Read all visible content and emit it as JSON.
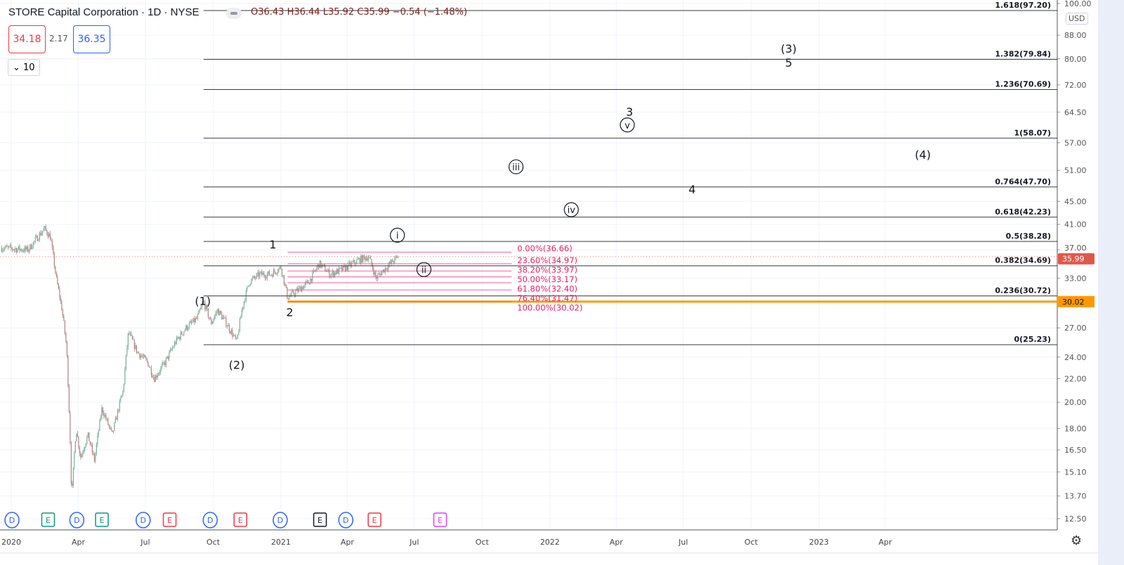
{
  "header": {
    "title": "STORE Capital Corporation · 1D · NYSE",
    "ohlc": "O36.43 H36.44 L35.92 C35.99 −0.54 (−1.48%)",
    "bid": "34.18",
    "spread": "2.17",
    "ask": "36.35",
    "lots": "10",
    "currency": "USD"
  },
  "colors": {
    "up": "#7fae9b",
    "down": "#b08686",
    "fib_ext": "#3a3a3a",
    "fib_retr": "#f0609a",
    "support": "#ff9800",
    "last_price": "#e0584a"
  },
  "chart_data": {
    "type": "candlestick",
    "symbol": "STORE Capital Corporation",
    "interval": "1D",
    "y_scale": "log",
    "ylim": [
      12.5,
      100
    ],
    "y_ticks": [
      "100.00",
      "88.00",
      "80.00",
      "72.00",
      "64.50",
      "57.00",
      "51.00",
      "45.00",
      "41.00",
      "37.00",
      "33.00",
      "27.00",
      "24.00",
      "22.00",
      "20.00",
      "18.00",
      "16.50",
      "15.10",
      "13.70",
      "12.50"
    ],
    "x_ticks": [
      {
        "date": "2020-01-01",
        "label": "2020"
      },
      {
        "date": "2020-04-01",
        "label": "Apr"
      },
      {
        "date": "2020-07-01",
        "label": "Jul"
      },
      {
        "date": "2020-10-01",
        "label": "Oct"
      },
      {
        "date": "2021-01-01",
        "label": "2021"
      },
      {
        "date": "2021-04-01",
        "label": "Apr"
      },
      {
        "date": "2021-07-01",
        "label": "Jul"
      },
      {
        "date": "2021-10-01",
        "label": "Oct"
      },
      {
        "date": "2022-01-01",
        "label": "2022"
      },
      {
        "date": "2022-04-01",
        "label": "Apr"
      },
      {
        "date": "2022-07-01",
        "label": "Jul"
      },
      {
        "date": "2022-10-01",
        "label": "Oct"
      },
      {
        "date": "2023-01-01",
        "label": "2023"
      },
      {
        "date": "2023-04-01",
        "label": "Apr"
      }
    ],
    "price_path": [
      [
        "2019-12-19",
        37.3
      ],
      [
        "2020-01-24",
        37.0
      ],
      [
        "2020-02-15",
        40.3
      ],
      [
        "2020-02-23",
        39.0
      ],
      [
        "2020-03-02",
        33.0
      ],
      [
        "2020-03-10",
        29.0
      ],
      [
        "2020-03-16",
        25.0
      ],
      [
        "2020-03-21",
        17.0
      ],
      [
        "2020-03-23",
        13.5
      ],
      [
        "2020-03-29",
        18.0
      ],
      [
        "2020-04-04",
        16.0
      ],
      [
        "2020-04-14",
        17.5
      ],
      [
        "2020-04-23",
        15.8
      ],
      [
        "2020-05-03",
        19.5
      ],
      [
        "2020-05-17",
        17.5
      ],
      [
        "2020-06-01",
        21.0
      ],
      [
        "2020-06-08",
        26.5
      ],
      [
        "2020-06-20",
        24.5
      ],
      [
        "2020-07-04",
        23.5
      ],
      [
        "2020-07-13",
        22.0
      ],
      [
        "2020-07-28",
        23.5
      ],
      [
        "2020-08-11",
        25.5
      ],
      [
        "2020-08-25",
        27.0
      ],
      [
        "2020-09-09",
        28.0
      ],
      [
        "2020-09-18",
        30.0
      ],
      [
        "2020-09-28",
        27.5
      ],
      [
        "2020-10-07",
        29.0
      ],
      [
        "2020-10-19",
        27.5
      ],
      [
        "2020-11-02",
        25.5
      ],
      [
        "2020-11-10",
        29.5
      ],
      [
        "2020-11-19",
        32.5
      ],
      [
        "2020-12-03",
        33.5
      ],
      [
        "2020-12-18",
        33.5
      ],
      [
        "2021-01-01",
        34.5
      ],
      [
        "2021-01-10",
        30.5
      ],
      [
        "2021-01-25",
        31.5
      ],
      [
        "2021-02-08",
        32.5
      ],
      [
        "2021-02-22",
        35.0
      ],
      [
        "2021-03-09",
        33.5
      ],
      [
        "2021-03-28",
        34.3
      ],
      [
        "2021-04-16",
        35.5
      ],
      [
        "2021-04-30",
        36.0
      ],
      [
        "2021-05-10",
        33.0
      ],
      [
        "2021-05-24",
        34.5
      ],
      [
        "2021-06-09",
        35.99
      ]
    ],
    "last_price": "35.99",
    "fib_extension": {
      "from_date": "2020-09-18",
      "levels": [
        {
          "ratio": "1.618",
          "price": 97.2,
          "label": "1.618(97.20)"
        },
        {
          "ratio": "1.382",
          "price": 79.84,
          "label": "1.382(79.84)"
        },
        {
          "ratio": "1.236",
          "price": 70.69,
          "label": "1.236(70.69)"
        },
        {
          "ratio": "1",
          "price": 58.07,
          "label": "1(58.07)"
        },
        {
          "ratio": "0.764",
          "price": 47.7,
          "label": "0.764(47.70)"
        },
        {
          "ratio": "0.618",
          "price": 42.23,
          "label": "0.618(42.23)"
        },
        {
          "ratio": "0.5",
          "price": 38.28,
          "label": "0.5(38.28)"
        },
        {
          "ratio": "0.382",
          "price": 34.69,
          "label": "0.382(34.69)"
        },
        {
          "ratio": "0.236",
          "price": 30.72,
          "label": "0.236(30.72)"
        },
        {
          "ratio": "0",
          "price": 25.23,
          "label": "0(25.23)"
        }
      ]
    },
    "fib_retracement": {
      "from_date": "2021-01-10",
      "to_date": "2021-11-10",
      "levels": [
        {
          "price": 36.66,
          "label": "0.00%(36.66)"
        },
        {
          "price": 34.97,
          "label": "23.60%(34.97)"
        },
        {
          "price": 33.97,
          "label": "38.20%(33.97)"
        },
        {
          "price": 33.17,
          "label": "50.00%(33.17)"
        },
        {
          "price": 32.4,
          "label": "61.80%(32.40)"
        },
        {
          "price": 31.47,
          "label": "76.40%(31.47)"
        },
        {
          "price": 30.02,
          "label": "100.00%(30.02)"
        }
      ]
    },
    "support_line": {
      "price": 30.02,
      "label": "30.02",
      "from_date": "2021-01-10"
    },
    "wave_labels": [
      {
        "text": "(1)",
        "date": "2020-09-17",
        "price": 29.6,
        "circled": false
      },
      {
        "text": "(2)",
        "date": "2020-11-02",
        "price": 22.9,
        "circled": false
      },
      {
        "text": "1",
        "date": "2020-12-21",
        "price": 37.2,
        "circled": false
      },
      {
        "text": "2",
        "date": "2021-01-13",
        "price": 28.3,
        "circled": false
      },
      {
        "text": "i",
        "date": "2021-06-08",
        "price": 38.7,
        "circled": true
      },
      {
        "text": "ii",
        "date": "2021-07-14",
        "price": 33.7,
        "circled": true
      },
      {
        "text": "iii",
        "date": "2021-11-16",
        "price": 51.0,
        "circled": true
      },
      {
        "text": "iv",
        "date": "2022-01-30",
        "price": 42.9,
        "circled": true
      },
      {
        "text": "v",
        "date": "2022-04-16",
        "price": 60.4,
        "circled": true
      },
      {
        "text": "3",
        "date": "2022-04-19",
        "price": 63.6,
        "circled": false
      },
      {
        "text": "4",
        "date": "2022-07-13",
        "price": 46.5,
        "circled": false
      },
      {
        "text": "(3)",
        "date": "2022-11-21",
        "price": 82.0,
        "circled": false
      },
      {
        "text": "5",
        "date": "2022-11-21",
        "price": 77.5,
        "circled": false
      },
      {
        "text": "(4)",
        "date": "2023-05-22",
        "price": 53.5,
        "circled": false
      }
    ],
    "events": [
      {
        "type": "D",
        "date": "2020-01-02",
        "color": "#2962ff"
      },
      {
        "type": "E",
        "date": "2020-02-20",
        "color": "#089981"
      },
      {
        "type": "D",
        "date": "2020-03-30",
        "color": "#2962ff"
      },
      {
        "type": "E",
        "date": "2020-05-03",
        "color": "#089981"
      },
      {
        "type": "D",
        "date": "2020-06-28",
        "color": "#2962ff"
      },
      {
        "type": "E",
        "date": "2020-08-03",
        "color": "#f23645"
      },
      {
        "type": "D",
        "date": "2020-09-27",
        "color": "#2962ff"
      },
      {
        "type": "E",
        "date": "2020-11-07",
        "color": "#f23645"
      },
      {
        "type": "D",
        "date": "2020-12-31",
        "color": "#2962ff"
      },
      {
        "type": "E",
        "date": "2021-02-23",
        "color": "#131722"
      },
      {
        "type": "D",
        "date": "2021-03-30",
        "color": "#2962ff"
      },
      {
        "type": "E",
        "date": "2021-05-08",
        "color": "#f23645"
      },
      {
        "type": "E",
        "date": "2021-08-05",
        "color": "#e040fb"
      }
    ]
  }
}
